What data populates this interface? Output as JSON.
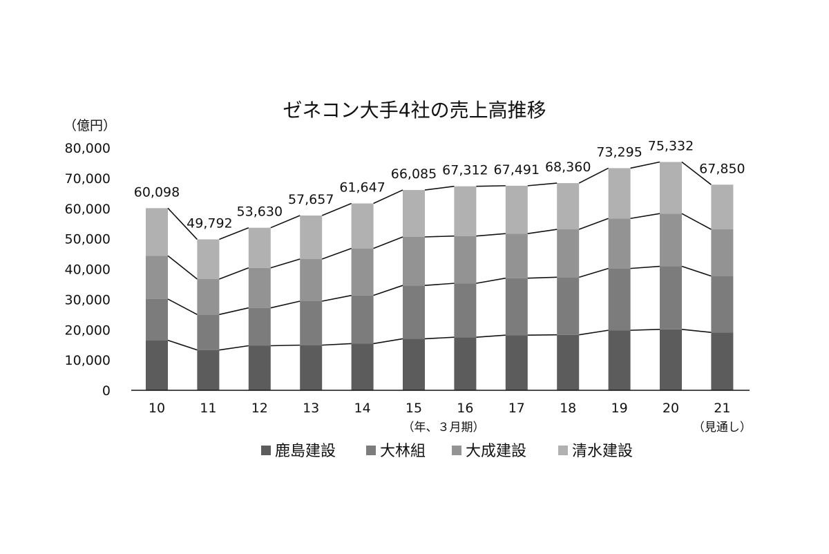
{
  "chart_data": {
    "type": "bar",
    "stacked": true,
    "title": "ゼネコン大手4社の売上高推移",
    "y_unit_label": "（億円）",
    "x_note_15": "（年、３月期）",
    "x_note_21": "（見通し）",
    "categories": [
      "10",
      "11",
      "12",
      "13",
      "14",
      "15",
      "16",
      "17",
      "18",
      "19",
      "20",
      "21"
    ],
    "series": [
      {
        "name": "鹿島建設",
        "color": "#5c5c5c",
        "values": [
          16500,
          13300,
          14700,
          14900,
          15400,
          17000,
          17500,
          18200,
          18300,
          19800,
          20100,
          19100
        ]
      },
      {
        "name": "大林組",
        "color": "#7c7c7c",
        "values": [
          13600,
          11700,
          12500,
          14500,
          15900,
          17600,
          17800,
          18800,
          19000,
          20400,
          20800,
          18600
        ]
      },
      {
        "name": "大成建設",
        "color": "#939393",
        "values": [
          14300,
          11700,
          13200,
          13900,
          15500,
          16000,
          15600,
          14700,
          15800,
          16500,
          17400,
          15400
        ]
      },
      {
        "name": "清水建設",
        "color": "#b1b1b1",
        "values": [
          15698,
          13092,
          13230,
          14357,
          14847,
          15485,
          16412,
          15791,
          15260,
          16595,
          17032,
          14750
        ]
      }
    ],
    "totals": [
      60098,
      49792,
      53630,
      57657,
      61647,
      66085,
      67312,
      67491,
      68360,
      73295,
      75332,
      67850
    ],
    "total_labels": [
      "60,098",
      "49,792",
      "53,630",
      "57,657",
      "61,647",
      "66,085",
      "67,312",
      "67,491",
      "68,360",
      "73,295",
      "75,332",
      "67,850"
    ],
    "ylim": [
      0,
      80000
    ],
    "y_ticks": [
      0,
      10000,
      20000,
      30000,
      40000,
      50000,
      60000,
      70000,
      80000
    ],
    "y_tick_labels": [
      "0",
      "10,000",
      "20,000",
      "30,000",
      "40,000",
      "50,000",
      "60,000",
      "70,000",
      "80,000"
    ],
    "grid": false,
    "legend_position": "bottom"
  }
}
